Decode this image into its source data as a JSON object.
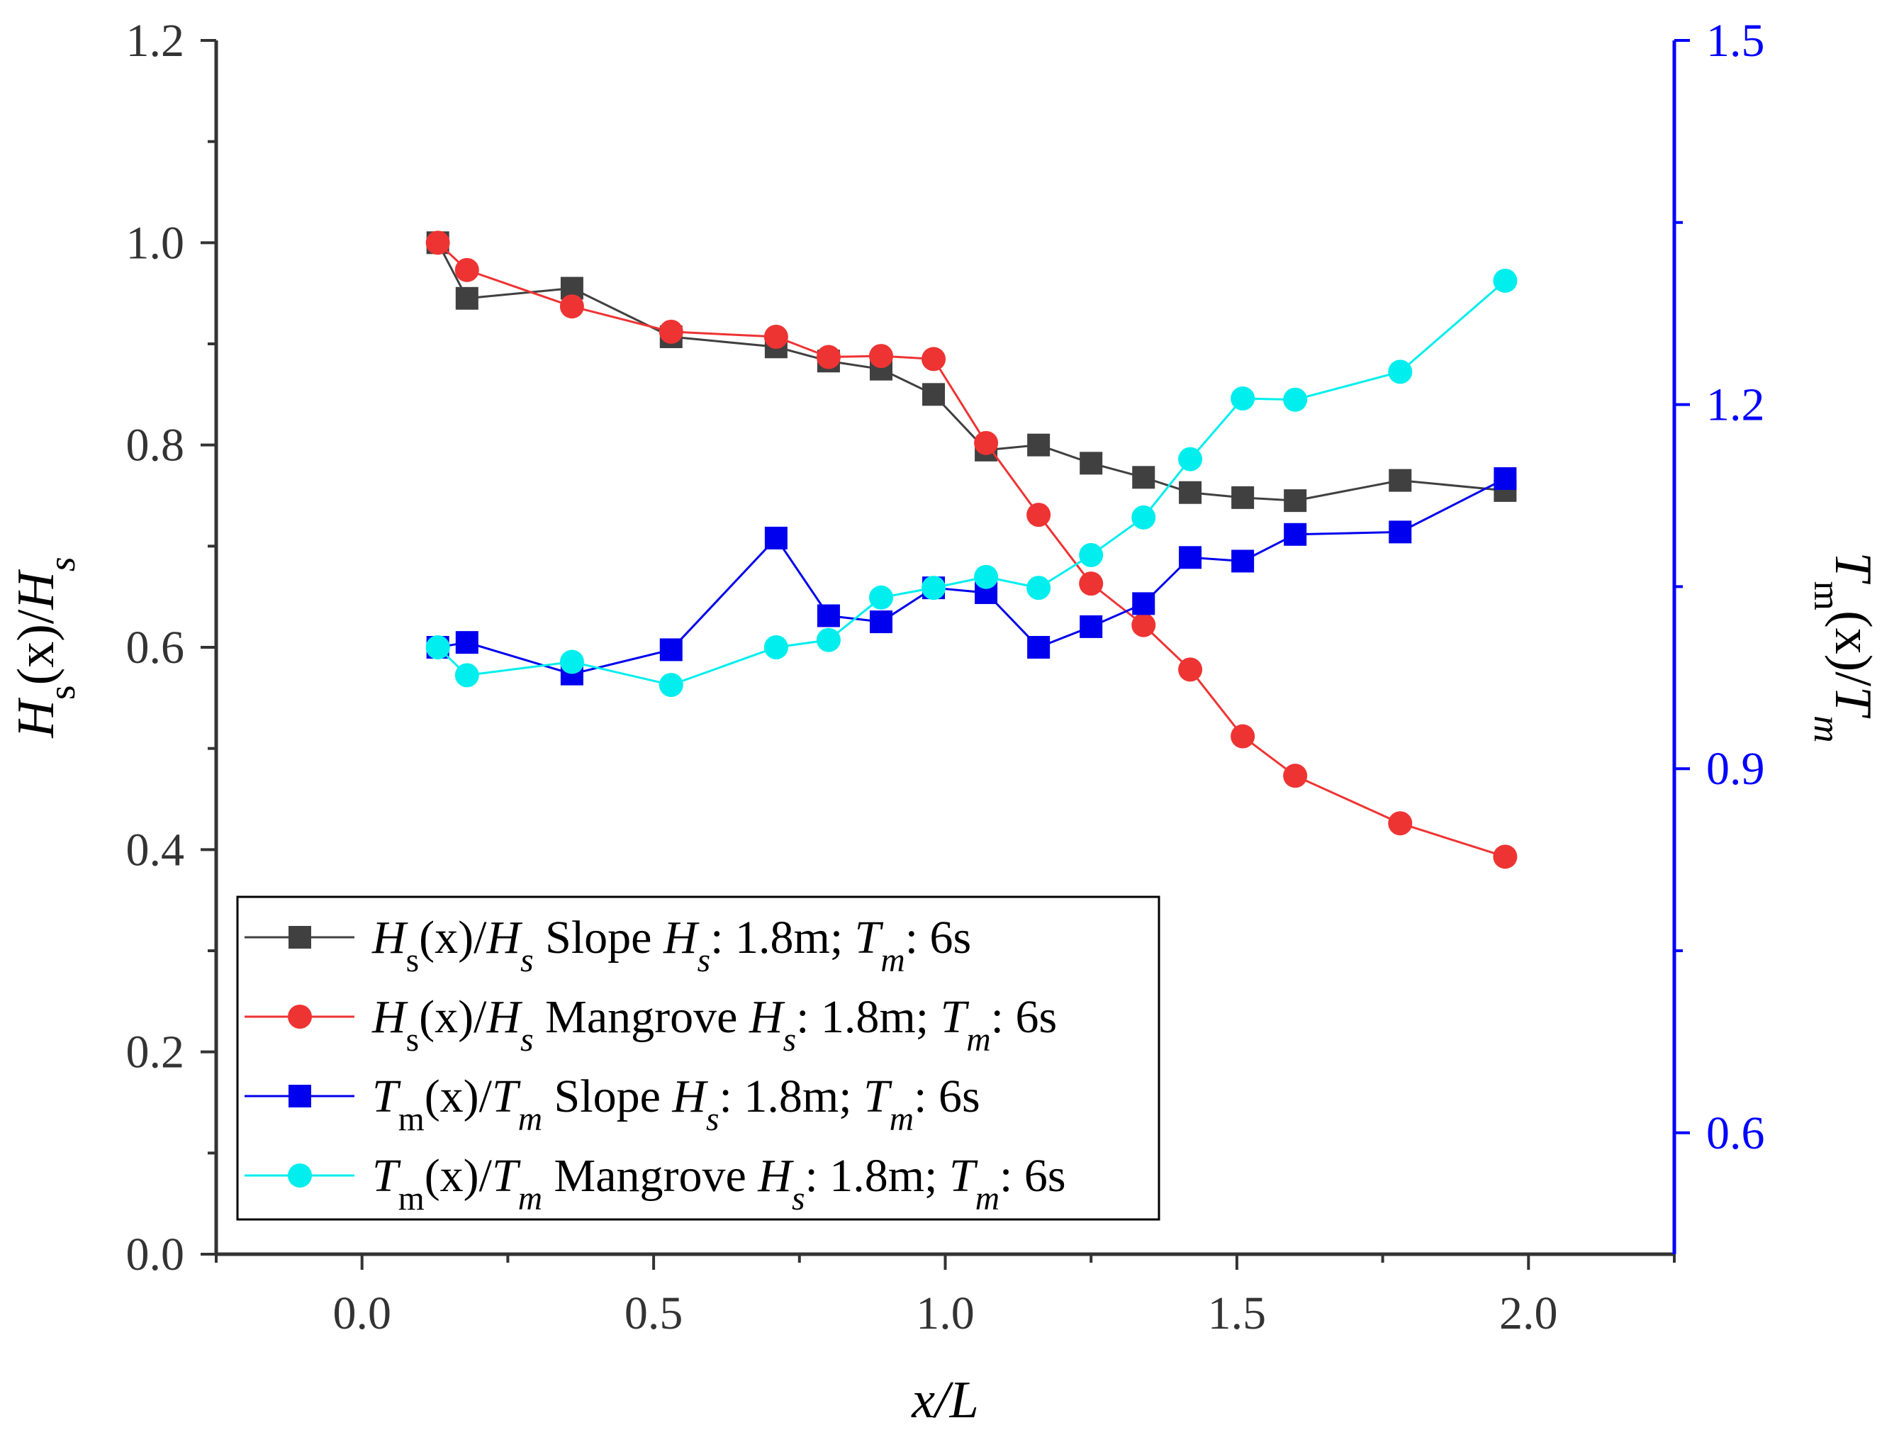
{
  "chart_data": {
    "type": "line",
    "title": "",
    "xlabel": {
      "main": "x",
      "italic_main": true,
      "suffix": "/L"
    },
    "ylabel_left": {
      "main": "H",
      "sub": "s",
      "mid": "(x)/",
      "main2": "H",
      "sub2": "s"
    },
    "ylabel_right": {
      "main": "T",
      "sub": "m",
      "mid": "(x)/",
      "main2": "T",
      "sub2": "m"
    },
    "xlim": [
      -0.25,
      2.25
    ],
    "ylim_left": [
      0.0,
      1.2
    ],
    "ylim_right": [
      0.5,
      1.5
    ],
    "x_ticks": [
      0.0,
      0.5,
      1.0,
      1.5,
      2.0
    ],
    "x_tick_labels": [
      "0.0",
      "0.5",
      "1.0",
      "1.5",
      "2.0"
    ],
    "y_left_ticks": [
      0.0,
      0.2,
      0.4,
      0.6,
      0.8,
      1.0,
      1.2
    ],
    "y_left_tick_labels": [
      "0.0",
      "0.2",
      "0.4",
      "0.6",
      "0.8",
      "1.0",
      "1.2"
    ],
    "y_right_ticks": [
      0.6,
      0.9,
      1.2,
      1.5
    ],
    "y_right_tick_labels": [
      "0.6",
      "0.9",
      "1.2",
      "1.5"
    ],
    "legend_position": "bottom-left",
    "colors": {
      "left_axis": "#333333",
      "right_axis": "#0000ff"
    },
    "series": [
      {
        "name": "Hs(x)/Hs Slope Hs: 1.8m; Tm: 6s",
        "axis": "left",
        "marker": "square",
        "color": "#404040",
        "legend": {
          "a": "H",
          "a_sub": "s",
          "b": "(x)/",
          "c": "H",
          "c_sub": "s",
          "d": " Slope ",
          "e": "H",
          "e_sub": "s",
          "f": ": 1.8m; ",
          "g": "T",
          "g_sub": "m",
          "h": ": 6s"
        },
        "x": [
          0.13,
          0.18,
          0.36,
          0.53,
          0.71,
          0.8,
          0.89,
          0.98,
          1.07,
          1.16,
          1.25,
          1.34,
          1.42,
          1.51,
          1.6,
          1.78,
          1.96
        ],
        "y": [
          1.0,
          0.945,
          0.955,
          0.907,
          0.897,
          0.883,
          0.875,
          0.85,
          0.795,
          0.8,
          0.782,
          0.768,
          0.753,
          0.748,
          0.745,
          0.765,
          0.755
        ]
      },
      {
        "name": "Hs(x)/Hs Mangrove Hs: 1.8m; Tm: 6s",
        "axis": "left",
        "marker": "circle",
        "color": "#ee3333",
        "legend": {
          "a": "H",
          "a_sub": "s",
          "b": "(x)/",
          "c": "H",
          "c_sub": "s",
          "d": " Mangrove ",
          "e": "H",
          "e_sub": "s",
          "f": ": 1.8m; ",
          "g": "T",
          "g_sub": "m",
          "h": ": 6s"
        },
        "x": [
          0.13,
          0.18,
          0.36,
          0.53,
          0.71,
          0.8,
          0.89,
          0.98,
          1.07,
          1.16,
          1.25,
          1.34,
          1.42,
          1.51,
          1.6,
          1.78,
          1.96
        ],
        "y": [
          1.0,
          0.973,
          0.937,
          0.912,
          0.907,
          0.887,
          0.888,
          0.885,
          0.802,
          0.731,
          0.663,
          0.622,
          0.578,
          0.512,
          0.473,
          0.426,
          0.393
        ]
      },
      {
        "name": "Tm(x)/Tm Slope Hs: 1.8m; Tm: 6s",
        "axis": "right",
        "marker": "square",
        "color": "#0000ee",
        "legend": {
          "a": "T",
          "a_sub": "m",
          "b": "(x)/",
          "c": "T",
          "c_sub": "m",
          "d": " Slope ",
          "e": "H",
          "e_sub": "s",
          "f": ": 1.8m; ",
          "g": "T",
          "g_sub": "m",
          "h": ": 6s"
        },
        "x": [
          0.13,
          0.18,
          0.36,
          0.53,
          0.71,
          0.8,
          0.89,
          0.98,
          1.07,
          1.16,
          1.25,
          1.34,
          1.42,
          1.51,
          1.6,
          1.78,
          1.96
        ],
        "y": [
          1.0,
          1.004,
          0.978,
          0.998,
          1.09,
          1.026,
          1.021,
          1.049,
          1.045,
          1.0,
          1.017,
          1.036,
          1.074,
          1.071,
          1.093,
          1.095,
          1.139
        ]
      },
      {
        "name": "Tm(x)/Tm Mangrove Hs: 1.8m; Tm: 6s",
        "axis": "right",
        "marker": "circle",
        "color": "#00eeee",
        "legend": {
          "a": "T",
          "a_sub": "m",
          "b": "(x)/",
          "c": "T",
          "c_sub": "m",
          "d": " Mangrove ",
          "e": "H",
          "e_sub": "s",
          "f": ": 1.8m; ",
          "g": "T",
          "g_sub": "m",
          "h": ": 6s"
        },
        "x": [
          0.13,
          0.18,
          0.36,
          0.53,
          0.71,
          0.8,
          0.89,
          0.98,
          1.07,
          1.16,
          1.25,
          1.34,
          1.42,
          1.51,
          1.6,
          1.78,
          1.96
        ],
        "y": [
          1.0,
          0.977,
          0.988,
          0.969,
          1.0,
          1.006,
          1.041,
          1.049,
          1.058,
          1.049,
          1.076,
          1.107,
          1.155,
          1.205,
          1.204,
          1.227,
          1.302
        ]
      }
    ]
  }
}
